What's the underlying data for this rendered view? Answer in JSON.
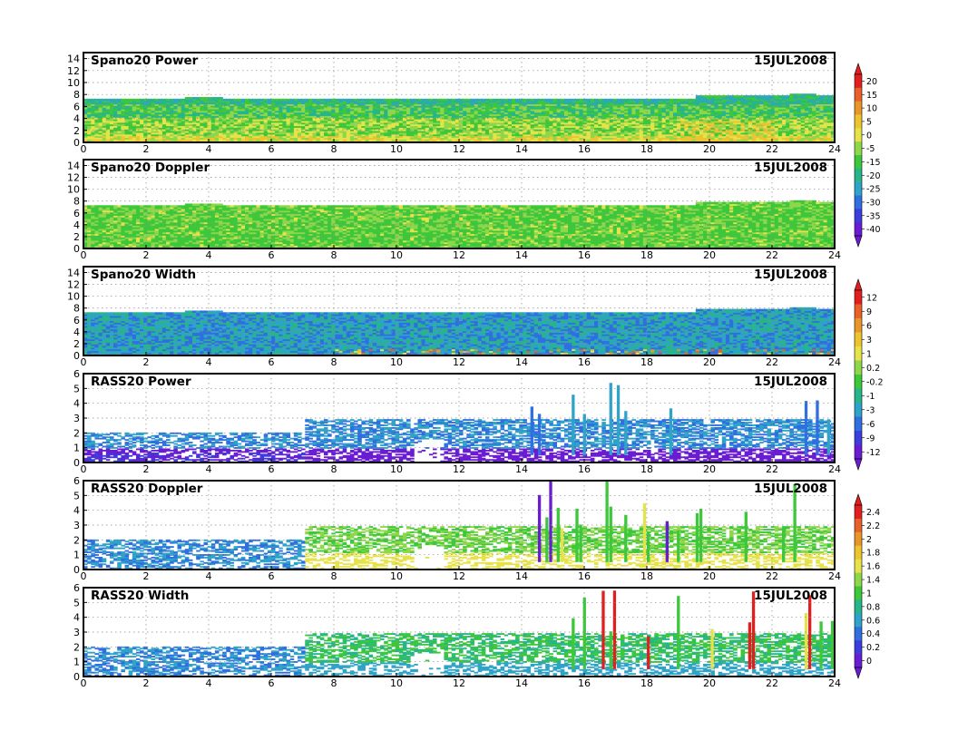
{
  "chart_data": [
    {
      "type": "heatmap",
      "title": "Spano20 Power",
      "date": "15JUL2008",
      "x_ticks": [
        "0",
        "2",
        "4",
        "6",
        "8",
        "10",
        "12",
        "14",
        "16",
        "18",
        "20",
        "22",
        "24"
      ],
      "y_ticks": [
        "0",
        "2",
        "4",
        "6",
        "8",
        "10",
        "12",
        "14"
      ],
      "xlim": [
        0,
        24
      ],
      "ylim": [
        0,
        15
      ],
      "grid": true,
      "colorbar": {
        "labels": [
          "20",
          "15",
          "10",
          "5",
          "0",
          "-5",
          "-15",
          "-20",
          "-25",
          "-30",
          "-35",
          "-40"
        ],
        "colors": [
          "#e21f1f",
          "#e8602a",
          "#e8962c",
          "#ebc42f",
          "#e6e24a",
          "#8ed64a",
          "#3cc83a",
          "#27b58a",
          "#2fa3c8",
          "#2f6fe0",
          "#3b3ddc",
          "#6a1cd2"
        ]
      },
      "echo_top": 7.3
    },
    {
      "type": "heatmap",
      "title": "Spano20 Doppler",
      "date": "15JUL2008",
      "x_ticks": [
        "0",
        "2",
        "4",
        "6",
        "8",
        "10",
        "12",
        "14",
        "16",
        "18",
        "20",
        "22",
        "24"
      ],
      "y_ticks": [
        "0",
        "2",
        "4",
        "6",
        "8",
        "10",
        "12",
        "14"
      ],
      "xlim": [
        0,
        24
      ],
      "ylim": [
        0,
        15
      ],
      "grid": true,
      "echo_top": 7.3
    },
    {
      "type": "heatmap",
      "title": "Spano20 Width",
      "date": "15JUL2008",
      "x_ticks": [
        "0",
        "2",
        "4",
        "6",
        "8",
        "10",
        "12",
        "14",
        "16",
        "18",
        "20",
        "22",
        "24"
      ],
      "y_ticks": [
        "0",
        "2",
        "4",
        "6",
        "8",
        "10",
        "12",
        "14"
      ],
      "xlim": [
        0,
        24
      ],
      "ylim": [
        0,
        15
      ],
      "grid": true,
      "colorbar": {
        "labels": [
          "12",
          "9",
          "6",
          "3",
          "1",
          "0.2",
          "-0.2",
          "-1",
          "-3",
          "-6",
          "-9",
          "-12"
        ],
        "colors": [
          "#e21f1f",
          "#e8602a",
          "#e8962c",
          "#ebc42f",
          "#e6e24a",
          "#8ed64a",
          "#3cc83a",
          "#27b58a",
          "#2fa3c8",
          "#2f6fe0",
          "#3b3ddc",
          "#6a1cd2"
        ]
      },
      "echo_top": 7.3
    },
    {
      "type": "heatmap",
      "title": "RASS20 Power",
      "date": "15JUL2008",
      "x_ticks": [
        "0",
        "2",
        "4",
        "6",
        "8",
        "10",
        "12",
        "14",
        "16",
        "18",
        "20",
        "22",
        "24"
      ],
      "y_ticks": [
        "0",
        "1",
        "2",
        "3",
        "4",
        "5",
        "6"
      ],
      "xlim": [
        0,
        24
      ],
      "ylim": [
        0,
        6
      ],
      "grid": true
    },
    {
      "type": "heatmap",
      "title": "RASS20 Doppler",
      "date": "15JUL2008",
      "x_ticks": [
        "0",
        "2",
        "4",
        "6",
        "8",
        "10",
        "12",
        "14",
        "16",
        "18",
        "20",
        "22",
        "24"
      ],
      "y_ticks": [
        "0",
        "1",
        "2",
        "3",
        "4",
        "5",
        "6"
      ],
      "xlim": [
        0,
        24
      ],
      "ylim": [
        0,
        6
      ],
      "grid": true,
      "colorbar": {
        "labels": [
          "2.4",
          "2.2",
          "2",
          "1.8",
          "1.6",
          "1.4",
          "1",
          "0.8",
          "0.6",
          "0.4",
          "0.2",
          "0"
        ],
        "colors": [
          "#e21f1f",
          "#e8602a",
          "#e8962c",
          "#ebc42f",
          "#e6e24a",
          "#8ed64a",
          "#3cc83a",
          "#27b58a",
          "#2fa3c8",
          "#2f6fe0",
          "#3b3ddc",
          "#6a1cd2"
        ]
      }
    },
    {
      "type": "heatmap",
      "title": "RASS20 Width",
      "date": "15JUL2008",
      "x_ticks": [
        "0",
        "2",
        "4",
        "6",
        "8",
        "10",
        "12",
        "14",
        "16",
        "18",
        "20",
        "22",
        "24"
      ],
      "y_ticks": [
        "0",
        "1",
        "2",
        "3",
        "4",
        "5",
        "6"
      ],
      "xlim": [
        0,
        24
      ],
      "ylim": [
        0,
        6
      ],
      "grid": true
    }
  ]
}
